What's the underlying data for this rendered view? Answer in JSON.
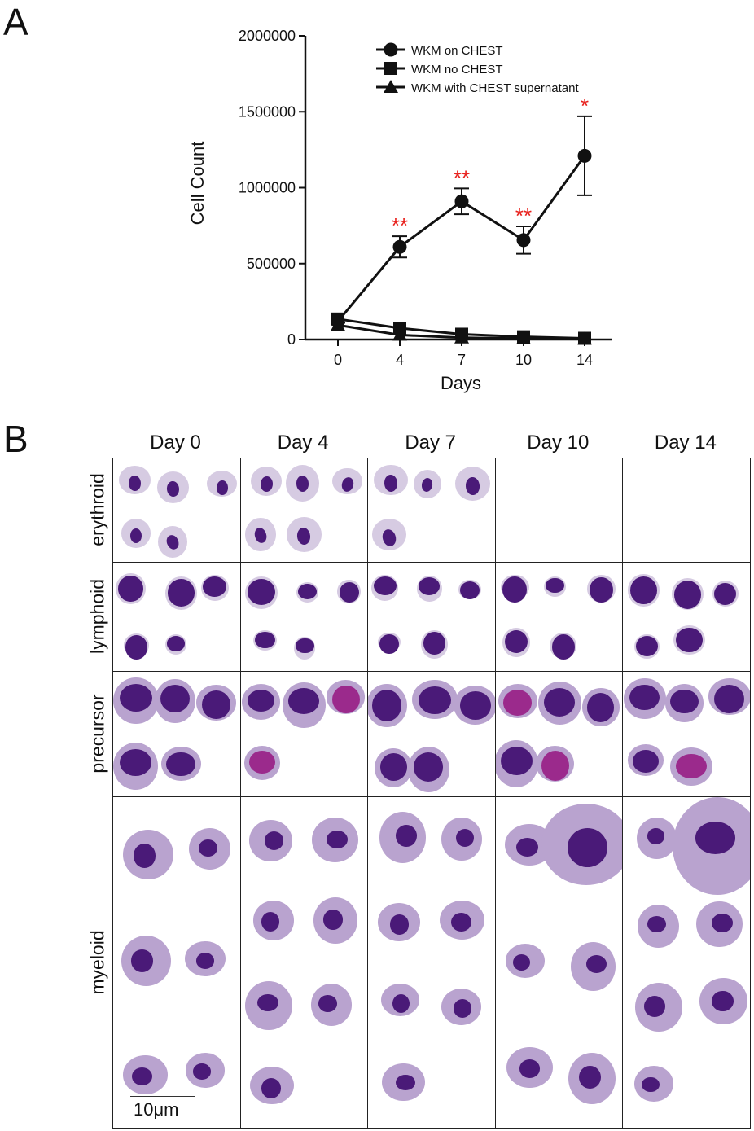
{
  "panel_a_letter": "A",
  "panel_b_letter": "B",
  "chart_data": {
    "type": "line",
    "title": "",
    "xlabel": "Days",
    "ylabel": "Cell Count",
    "x": [
      0,
      4,
      7,
      10,
      14
    ],
    "x_tick_labels": [
      "0",
      "4",
      "7",
      "10",
      "14"
    ],
    "y_tick_labels": [
      "0",
      "500000",
      "1000000",
      "1500000",
      "2000000"
    ],
    "ylim": [
      0,
      2000000
    ],
    "legend_position": "top-right",
    "series": [
      {
        "name": "WKM on CHEST",
        "marker": "circle",
        "values": [
          120000,
          610000,
          910000,
          655000,
          1210000
        ],
        "errors": [
          10000,
          70000,
          85000,
          90000,
          260000
        ],
        "significance": [
          "",
          "**",
          "**",
          "**",
          "*"
        ]
      },
      {
        "name": "WKM no CHEST",
        "marker": "square",
        "values": [
          135000,
          75000,
          35000,
          18000,
          8000
        ],
        "errors": [
          0,
          0,
          0,
          0,
          0
        ],
        "significance": [
          "",
          "",
          "",
          "",
          ""
        ]
      },
      {
        "name": "WKM with CHEST supernatant",
        "marker": "triangle",
        "values": [
          95000,
          30000,
          12000,
          6000,
          4000
        ],
        "errors": [
          0,
          0,
          0,
          0,
          0
        ],
        "significance": [
          "",
          "",
          "",
          "",
          ""
        ]
      }
    ],
    "significance_color": "#e8201c"
  },
  "micrographs": {
    "columns": [
      "Day 0",
      "Day 4",
      "Day 7",
      "Day 10",
      "Day 14"
    ],
    "rows": [
      "erythroid",
      "lymphoid",
      "precursor",
      "myeloid"
    ],
    "scale_bar_label": "10μm",
    "colors": {
      "nucleus": "#4a1a78",
      "cytoplasm": "#b9a3cf",
      "pale": "#d6cbe2",
      "magenta": "#9b2a8c"
    }
  }
}
